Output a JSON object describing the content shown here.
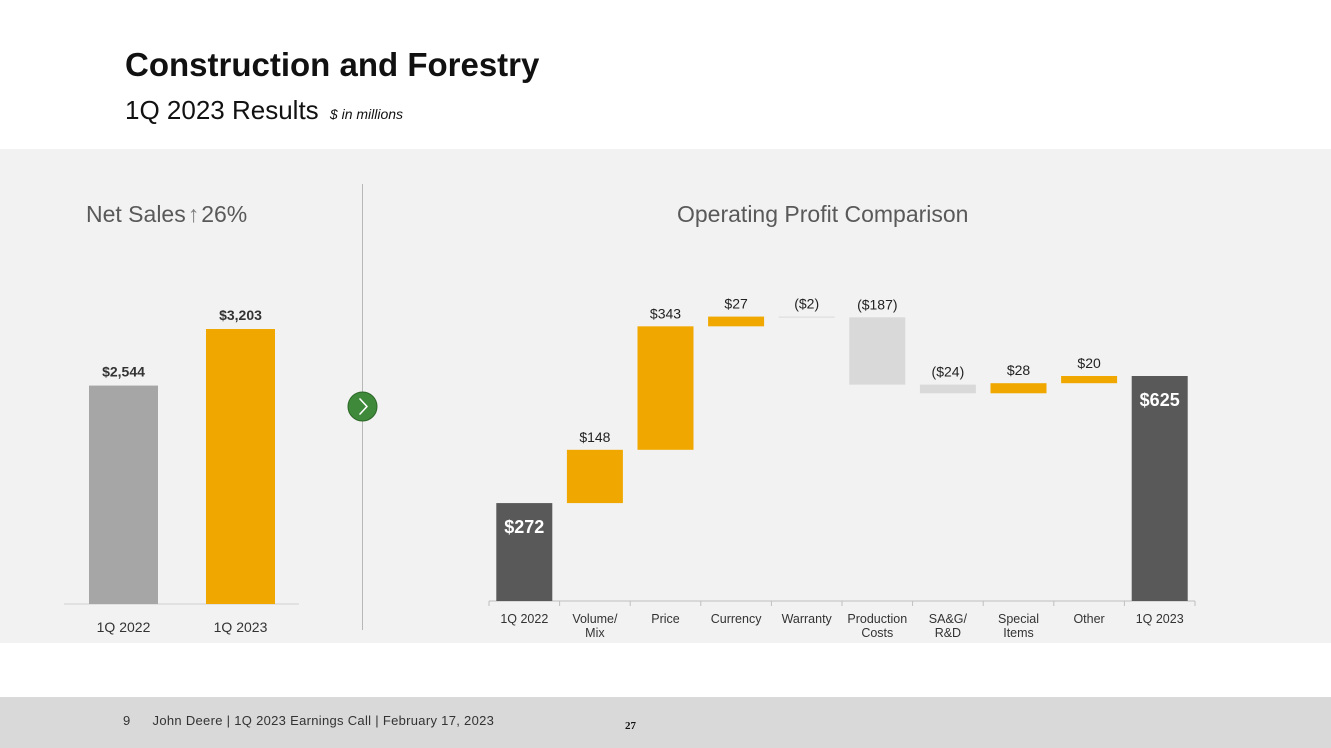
{
  "header": {
    "title": "Construction and Forestry",
    "subtitle": "1Q 2023 Results",
    "unit_note": "$ in millions"
  },
  "net_sales": {
    "title_prefix": "Net Sales",
    "arrow_glyph": "↑",
    "title_change": "26%"
  },
  "operating_profit": {
    "title": "Operating Profit Comparison"
  },
  "chart_data": [
    {
      "type": "bar",
      "title": "Net Sales ↑26%",
      "categories": [
        "1Q 2022",
        "1Q 2023"
      ],
      "values": [
        2544,
        3203
      ],
      "value_labels": [
        "$2,544",
        "$3,203"
      ],
      "colors": [
        "#a6a6a6",
        "#f0a800"
      ],
      "ylim": [
        0,
        3203
      ],
      "grid": false
    },
    {
      "type": "waterfall",
      "title": "Operating Profit Comparison",
      "categories": [
        "1Q 2022",
        "Volume/ Mix",
        "Price",
        "Currency",
        "Warranty",
        "Production Costs",
        "SA&G/ R&D",
        "Special Items",
        "Other",
        "1Q 2023"
      ],
      "category_lines": [
        [
          "1Q 2022"
        ],
        [
          "Volume/",
          "Mix"
        ],
        [
          "Price"
        ],
        [
          "Currency"
        ],
        [
          "Warranty"
        ],
        [
          "Production",
          "Costs"
        ],
        [
          "SA&G/",
          "R&D"
        ],
        [
          "Special",
          "Items"
        ],
        [
          "Other"
        ],
        [
          "1Q 2023"
        ]
      ],
      "values": [
        272,
        148,
        343,
        27,
        -2,
        -187,
        -24,
        28,
        20,
        625
      ],
      "value_labels": [
        "$272",
        "$148",
        "$343",
        "$27",
        "($2)",
        "($187)",
        "($24)",
        "$28",
        "$20",
        "$625"
      ],
      "kinds": [
        "total",
        "delta",
        "delta",
        "delta",
        "delta",
        "delta",
        "delta",
        "delta",
        "delta",
        "total"
      ],
      "colors": {
        "total": "#595959",
        "increase": "#f0a800",
        "decrease": "#d9d9d9"
      },
      "ylim": [
        0,
        825
      ],
      "grid": false
    }
  ],
  "footer": {
    "page_number": "9",
    "text": "John Deere | 1Q 2023 Earnings Call | February 17, 2023",
    "slide_number": "27"
  }
}
